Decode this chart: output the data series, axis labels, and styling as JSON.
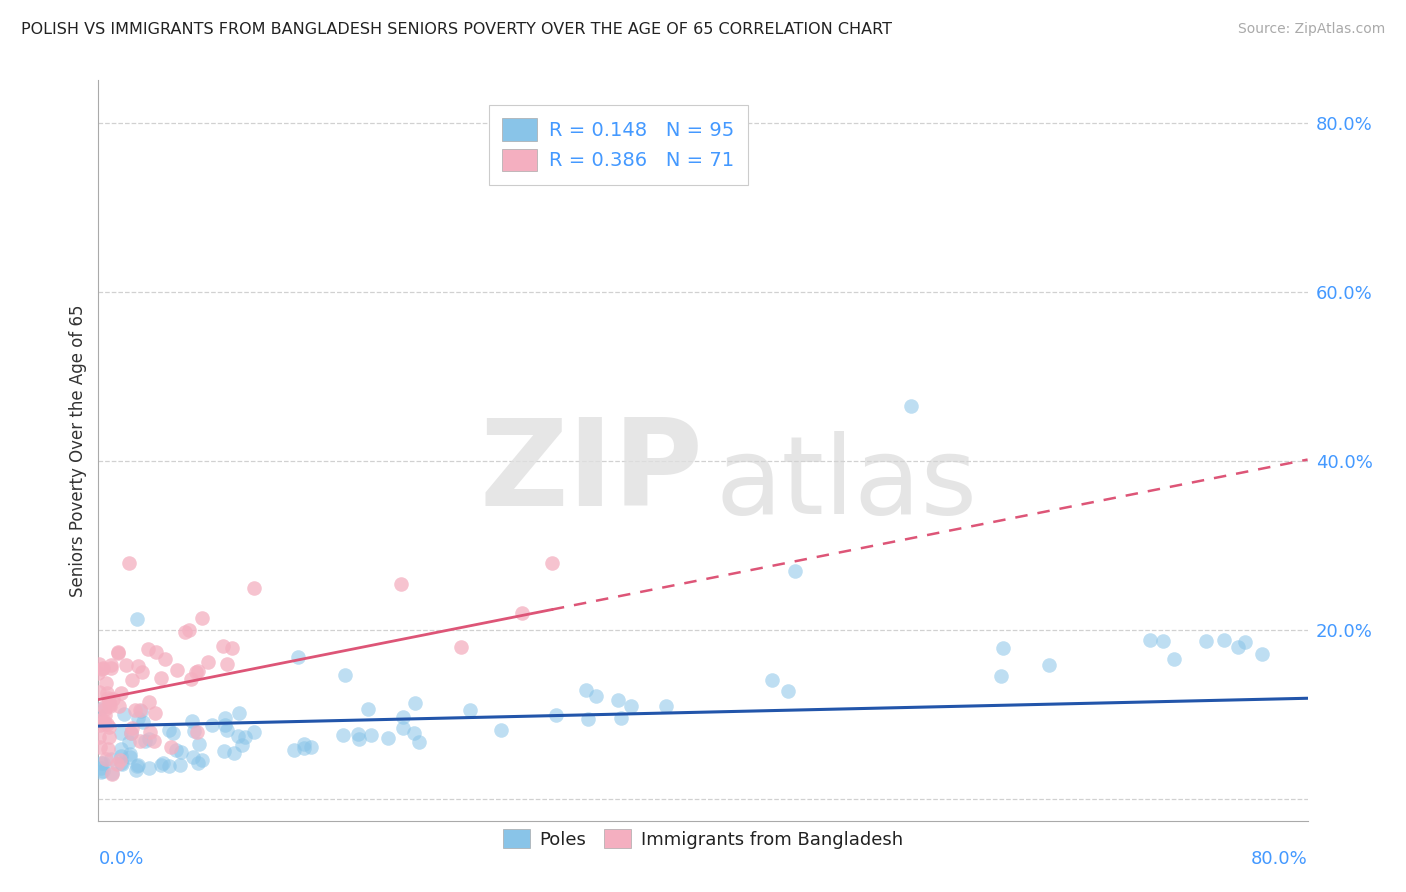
{
  "title": "POLISH VS IMMIGRANTS FROM BANGLADESH SENIORS POVERTY OVER THE AGE OF 65 CORRELATION CHART",
  "source": "Source: ZipAtlas.com",
  "ylabel": "Seniors Poverty Over the Age of 65",
  "watermark_zip": "ZIP",
  "watermark_atlas": "atlas",
  "blue_R": 0.148,
  "blue_N": 95,
  "pink_R": 0.386,
  "pink_N": 71,
  "blue_label": "Poles",
  "pink_label": "Immigrants from Bangladesh",
  "blue_color": "#89c4e8",
  "pink_color": "#f4afc0",
  "blue_line_color": "#2255aa",
  "pink_line_color": "#dd5577",
  "xlim": [
    0.0,
    0.8
  ],
  "ylim": [
    -0.025,
    0.85
  ],
  "grid_color": "#cccccc",
  "grid_style": "--",
  "background_color": "#ffffff",
  "title_fontsize": 11.5,
  "source_fontsize": 10,
  "tick_label_color": "#4499ff",
  "tick_label_fontsize": 13
}
